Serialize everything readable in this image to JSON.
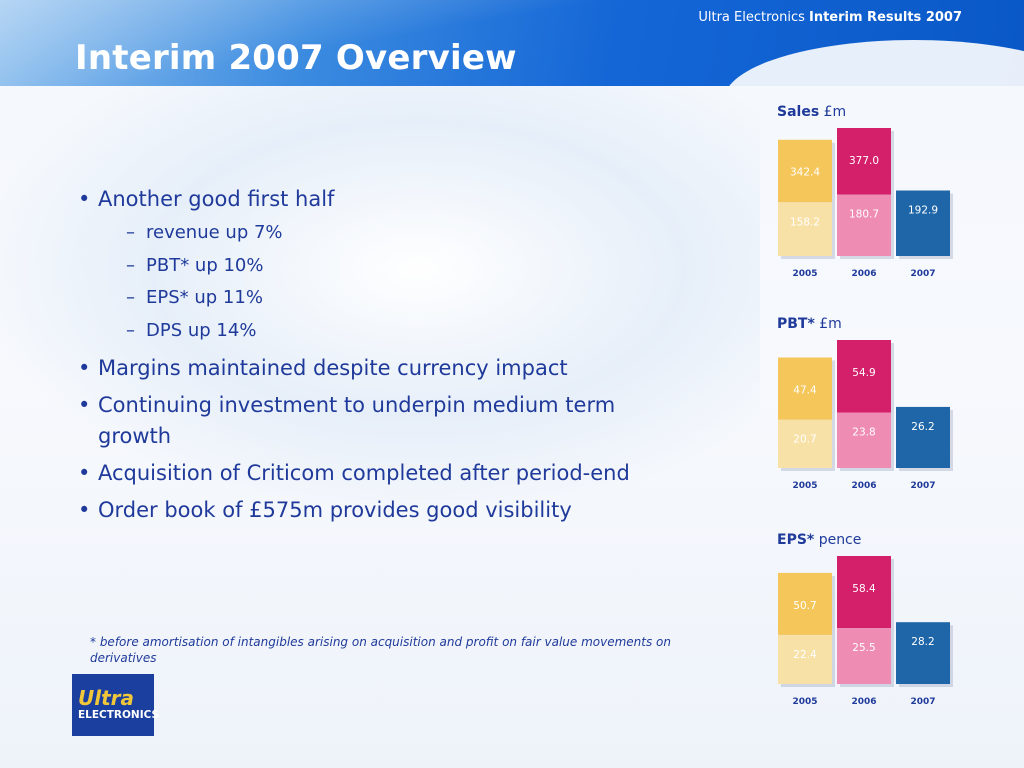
{
  "header": {
    "caption_normal": "Ultra Electronics ",
    "caption_bold": "Interim Results 2007",
    "title": "Interim 2007 Overview"
  },
  "bullets": [
    {
      "text": "Another good first half",
      "sub": [
        "revenue up 7%",
        "PBT* up 10%",
        "EPS* up 11%",
        "DPS up 14%"
      ]
    },
    {
      "text": "Margins maintained despite currency impact",
      "sub": []
    },
    {
      "text": "Continuing investment to underpin medium term growth",
      "sub": []
    },
    {
      "text": "Acquisition of Criticom completed after period-end",
      "sub": []
    },
    {
      "text": "Order book of £575m provides good visibility",
      "sub": []
    }
  ],
  "footnote": "* before amortisation of intangibles arising on acquisition and profit on fair value movements on derivatives",
  "logo": {
    "line1": "Ultra",
    "line2": "ELECTRONICS"
  },
  "colors": {
    "y2005_full": "#f5c65a",
    "y2005_half": "#f8e1a6",
    "y2006_full": "#d41f6a",
    "y2006_half": "#ee8cb3",
    "y2007_half": "#1e66a8",
    "text_blue": "#1f3a9a"
  },
  "chart_data": [
    {
      "type": "bar",
      "title_bold": "Sales",
      "title_unit": "£m",
      "categories": [
        "2005",
        "2006",
        "2007"
      ],
      "series": [
        {
          "values": [
            158.2,
            180.7,
            192.9
          ]
        },
        {
          "values": [
            342.4,
            377.0,
            null
          ]
        }
      ],
      "labels_half": [
        "158.2",
        "180.7",
        "192.9"
      ],
      "labels_full": [
        "342.4",
        "377.0",
        null
      ]
    },
    {
      "type": "bar",
      "title_bold": "PBT*",
      "title_unit": "£m",
      "categories": [
        "2005",
        "2006",
        "2007"
      ],
      "series": [
        {
          "values": [
            20.7,
            23.8,
            26.2
          ]
        },
        {
          "values": [
            47.4,
            54.9,
            null
          ]
        }
      ],
      "labels_half": [
        "20.7",
        "23.8",
        "26.2"
      ],
      "labels_full": [
        "47.4",
        "54.9",
        null
      ]
    },
    {
      "type": "bar",
      "title_bold": "EPS*",
      "title_unit": "pence",
      "categories": [
        "2005",
        "2006",
        "2007"
      ],
      "series": [
        {
          "values": [
            22.4,
            25.5,
            28.2
          ]
        },
        {
          "values": [
            50.7,
            58.4,
            null
          ]
        }
      ],
      "labels_half": [
        "22.4",
        "25.5",
        "28.2"
      ],
      "labels_full": [
        "50.7",
        "58.4",
        null
      ]
    }
  ]
}
